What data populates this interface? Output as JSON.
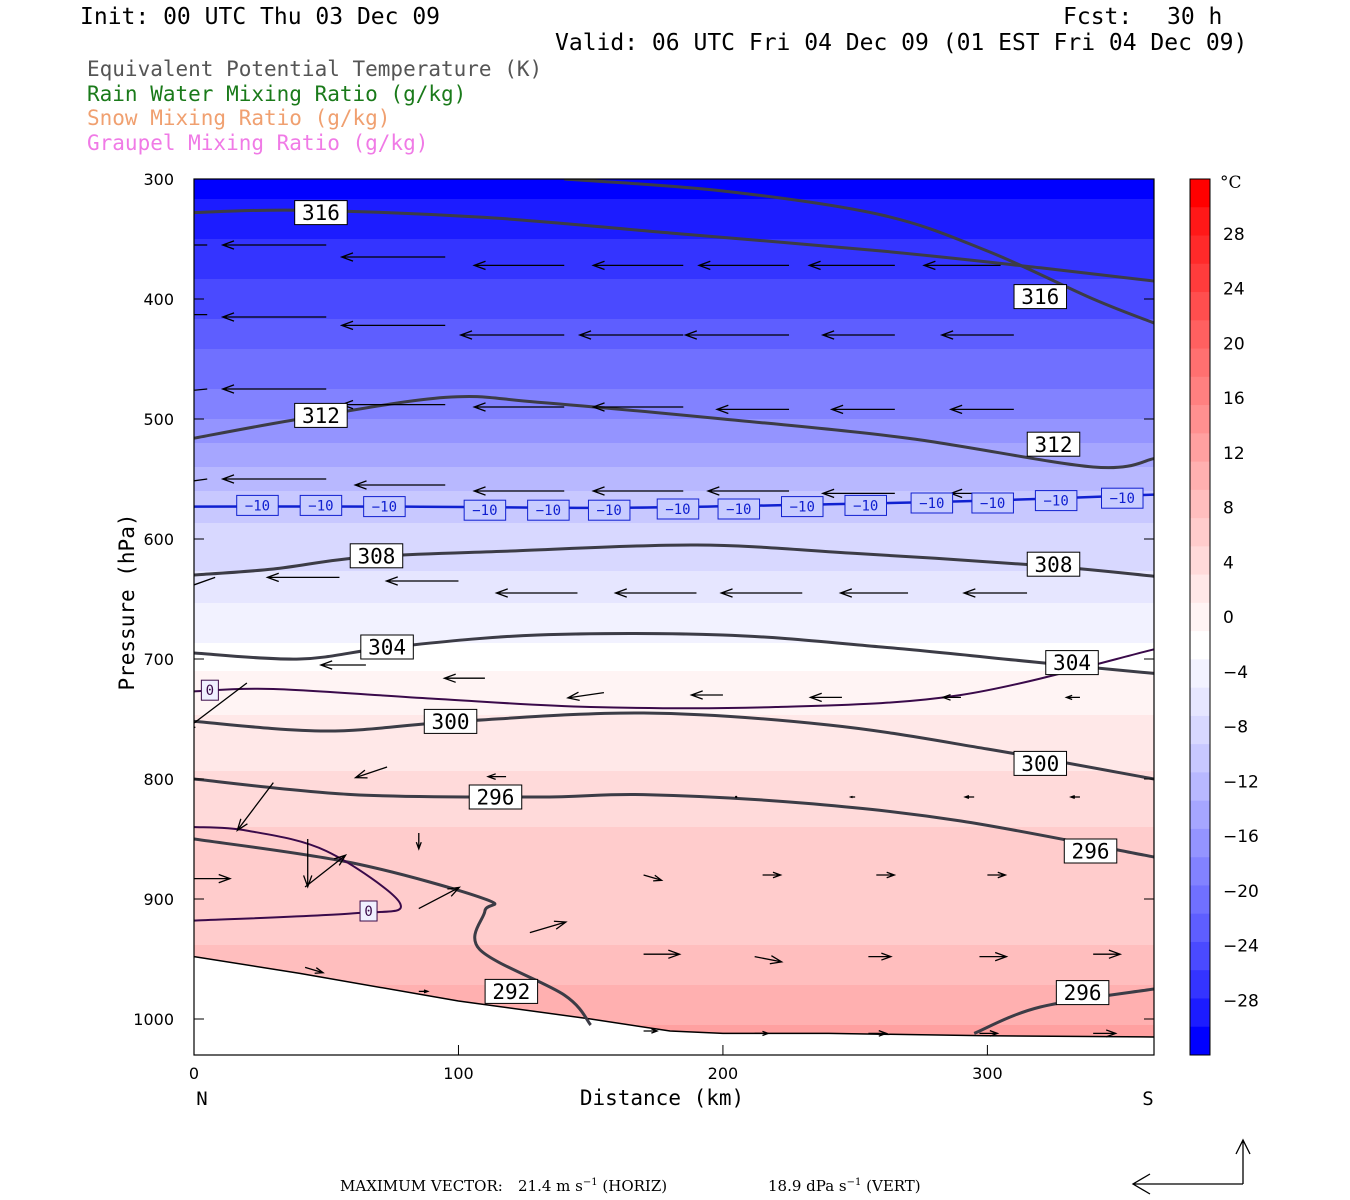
{
  "header": {
    "init": "Init: 00 UTC Thu 03 Dec 09",
    "fcst_label": "Fcst:",
    "fcst_value": "30 h",
    "valid": "Valid: 06 UTC Fri 04 Dec 09 (01 EST Fri 04 Dec 09)"
  },
  "fields": [
    {
      "label": "Equivalent Potential Temperature (K)",
      "color": "#555555"
    },
    {
      "label": "Rain Water Mixing Ratio (g/kg)",
      "color": "#1a7a1a"
    },
    {
      "label": "Snow Mixing Ratio (g/kg)",
      "color": "#f0a070"
    },
    {
      "label": "Graupel Mixing Ratio (g/kg)",
      "color": "#f07ae6"
    }
  ],
  "chart_data": {
    "type": "cross-section",
    "xlabel": "Distance (km)",
    "ylabel": "Pressure (hPa)",
    "xlim": [
      0,
      363
    ],
    "ylim": [
      1030,
      300
    ],
    "x_ticks": [
      "0",
      "100",
      "200",
      "300"
    ],
    "x_tick_values": [
      0,
      100,
      200,
      300
    ],
    "y_ticks": [
      "300",
      "400",
      "500",
      "600",
      "700",
      "800",
      "900",
      "1000"
    ],
    "y_tick_values": [
      300,
      400,
      500,
      600,
      700,
      800,
      900,
      1000
    ],
    "x_end_labels": {
      "left": "N",
      "right": "S"
    },
    "colorbar": {
      "unit": "°C",
      "ticks": [
        "28",
        "24",
        "20",
        "16",
        "12",
        "8",
        "4",
        "0",
        "−4",
        "−8",
        "−12",
        "−16",
        "−20",
        "−24",
        "−28"
      ],
      "tick_values": [
        28,
        24,
        20,
        16,
        12,
        8,
        4,
        0,
        -4,
        -8,
        -12,
        -16,
        -20,
        -24,
        -28
      ],
      "range": [
        -32,
        32
      ],
      "colors": [
        "#0000ff",
        "#1c1cff",
        "#3434ff",
        "#4a4aff",
        "#5e5eff",
        "#7070ff",
        "#8282ff",
        "#9494ff",
        "#a6a6ff",
        "#b8b8ff",
        "#c8c8ff",
        "#d8d8ff",
        "#e6e6ff",
        "#f2f2ff",
        "#ffffff",
        "#fff4f4",
        "#ffe8e8",
        "#ffdada",
        "#ffcccc",
        "#ffbebe",
        "#ffb0b0",
        "#ffa0a0",
        "#ff9090",
        "#ff8080",
        "#ff7070",
        "#ff6060",
        "#ff4e4e",
        "#ff3c3c",
        "#ff2a2a",
        "#ff1818",
        "#ff0000"
      ]
    },
    "temperature_bands": [
      {
        "p": 300,
        "t": -32
      },
      {
        "p": 400,
        "t": -26
      },
      {
        "p": 450,
        "t": -22
      },
      {
        "p": 500,
        "t": -18
      },
      {
        "p": 540,
        "t": -14
      },
      {
        "p": 580,
        "t": -10
      },
      {
        "p": 620,
        "t": -8
      },
      {
        "p": 660,
        "t": -5
      },
      {
        "p": 700,
        "t": -2
      },
      {
        "p": 730,
        "t": 0.5
      },
      {
        "p": 780,
        "t": 2
      },
      {
        "p": 820,
        "t": 5
      },
      {
        "p": 880,
        "t": 6
      },
      {
        "p": 930,
        "t": 7
      },
      {
        "p": 980,
        "t": 10
      },
      {
        "p": 1030,
        "t": 13
      }
    ],
    "theta_e_contours": [
      {
        "label": "316",
        "points": [
          [
            0,
            328
          ],
          [
            40,
            326
          ],
          [
            110,
            332
          ],
          [
            180,
            345
          ],
          [
            260,
            360
          ],
          [
            320,
            374
          ],
          [
            363,
            385
          ]
        ],
        "label_at": [
          48,
          328
        ]
      },
      {
        "label": "316",
        "points": [
          [
            140,
            300
          ],
          [
            200,
            310
          ],
          [
            260,
            330
          ],
          [
            300,
            360
          ],
          [
            340,
            400
          ],
          [
            363,
            420
          ]
        ],
        "label_at": [
          320,
          398
        ]
      },
      {
        "label": "312",
        "points": [
          [
            0,
            516
          ],
          [
            40,
            500
          ],
          [
            95,
            482
          ],
          [
            130,
            486
          ],
          [
            200,
            500
          ],
          [
            270,
            516
          ],
          [
            340,
            540
          ],
          [
            363,
            533
          ]
        ],
        "label_at": [
          48,
          497
        ]
      },
      {
        "label": "312",
        "points": [],
        "label_at": [
          325,
          521
        ]
      },
      {
        "label": "308",
        "points": [
          [
            0,
            630
          ],
          [
            30,
            625
          ],
          [
            65,
            615
          ],
          [
            120,
            610
          ],
          [
            190,
            605
          ],
          [
            250,
            612
          ],
          [
            320,
            622
          ],
          [
            363,
            631
          ]
        ],
        "label_at": [
          69,
          614
        ]
      },
      {
        "label": "308",
        "points": [],
        "label_at": [
          325,
          621
        ]
      },
      {
        "label": "304",
        "points": [
          [
            0,
            695
          ],
          [
            40,
            700
          ],
          [
            75,
            690
          ],
          [
            130,
            680
          ],
          [
            200,
            680
          ],
          [
            260,
            690
          ],
          [
            320,
            703
          ],
          [
            363,
            712
          ]
        ],
        "label_at": [
          73,
          690
        ]
      },
      {
        "label": "304",
        "points": [],
        "label_at": [
          332,
          703
        ]
      },
      {
        "label": "300",
        "points": [
          [
            0,
            752
          ],
          [
            50,
            760
          ],
          [
            100,
            752
          ],
          [
            170,
            745
          ],
          [
            240,
            755
          ],
          [
            300,
            775
          ],
          [
            363,
            800
          ]
        ],
        "label_at": [
          97,
          752
        ]
      },
      {
        "label": "300",
        "points": [],
        "label_at": [
          320,
          787
        ]
      },
      {
        "label": "296",
        "points": [
          [
            0,
            800
          ],
          [
            60,
            813
          ],
          [
            130,
            815
          ],
          [
            170,
            813
          ],
          [
            230,
            820
          ],
          [
            290,
            835
          ],
          [
            363,
            865
          ]
        ],
        "label_at": [
          114,
          815
        ]
      },
      {
        "label": "296",
        "points": [],
        "label_at": [
          339,
          860
        ]
      },
      {
        "label": "296",
        "points": [
          [
            295,
            1012
          ],
          [
            320,
            990
          ],
          [
            363,
            975
          ]
        ],
        "label_at": [
          336,
          978
        ]
      },
      {
        "label": "292",
        "points": [
          [
            0,
            850
          ],
          [
            60,
            870
          ],
          [
            110,
            900
          ],
          [
            110,
            910
          ],
          [
            108,
            942
          ],
          [
            140,
            980
          ],
          [
            150,
            1005
          ]
        ],
        "label_at": [
          120,
          977
        ]
      }
    ],
    "freezing_contours": [
      {
        "label": "0",
        "points": [
          [
            0,
            727
          ],
          [
            30,
            725
          ],
          [
            90,
            733
          ],
          [
            150,
            740
          ],
          [
            220,
            740
          ],
          [
            290,
            730
          ],
          [
            363,
            692
          ]
        ],
        "label_at": [
          6,
          726
        ]
      },
      {
        "label": "0",
        "points": [
          [
            0,
            840
          ],
          [
            20,
            843
          ],
          [
            50,
            860
          ],
          [
            78,
            904
          ],
          [
            60,
            912
          ],
          [
            0,
            918
          ]
        ],
        "label_at": [
          66,
          910
        ]
      }
    ],
    "minus10_contour": {
      "label": "−10",
      "points": [
        [
          0,
          573
        ],
        [
          80,
          573
        ],
        [
          160,
          574
        ],
        [
          240,
          571
        ],
        [
          300,
          568
        ],
        [
          363,
          563
        ]
      ],
      "label_at": [
        [
          24,
          572
        ],
        [
          48,
          572
        ],
        [
          72,
          573
        ],
        [
          110,
          576
        ],
        [
          134,
          576
        ],
        [
          157,
          576
        ],
        [
          183,
          575
        ],
        [
          206,
          575
        ],
        [
          230,
          573
        ],
        [
          254,
          572
        ],
        [
          279,
          570
        ],
        [
          302,
          570
        ],
        [
          326,
          568
        ],
        [
          351,
          566
        ]
      ]
    },
    "vectors": [
      {
        "x": 5,
        "p": 355,
        "u": -23,
        "w": 0
      },
      {
        "x": 50,
        "p": 355,
        "u": -23,
        "w": 0
      },
      {
        "x": 95,
        "p": 365,
        "u": -23,
        "w": 0
      },
      {
        "x": 140,
        "p": 372,
        "u": -20,
        "w": 0
      },
      {
        "x": 185,
        "p": 372,
        "u": -20,
        "w": 0
      },
      {
        "x": 225,
        "p": 372,
        "u": -20,
        "w": 0
      },
      {
        "x": 265,
        "p": 372,
        "u": -19,
        "w": 0
      },
      {
        "x": 305,
        "p": 372,
        "u": -17,
        "w": 0
      },
      {
        "x": 5,
        "p": 413,
        "u": -27,
        "w": 0
      },
      {
        "x": 50,
        "p": 415,
        "u": -23,
        "w": 0
      },
      {
        "x": 95,
        "p": 422,
        "u": -23,
        "w": 0
      },
      {
        "x": 140,
        "p": 430,
        "u": -23,
        "w": 0
      },
      {
        "x": 185,
        "p": 430,
        "u": -23,
        "w": 0
      },
      {
        "x": 225,
        "p": 430,
        "u": -23,
        "w": 0
      },
      {
        "x": 265,
        "p": 430,
        "u": -16,
        "w": 0
      },
      {
        "x": 310,
        "p": 430,
        "u": -16,
        "w": 0
      },
      {
        "x": 5,
        "p": 475,
        "u": -25,
        "w": 2
      },
      {
        "x": 50,
        "p": 475,
        "u": -23,
        "w": 0
      },
      {
        "x": 95,
        "p": 488,
        "u": -23,
        "w": 0
      },
      {
        "x": 140,
        "p": 490,
        "u": -20,
        "w": 0
      },
      {
        "x": 185,
        "p": 490,
        "u": -20,
        "w": 0
      },
      {
        "x": 225,
        "p": 492,
        "u": -16,
        "w": 0
      },
      {
        "x": 265,
        "p": 492,
        "u": -14,
        "w": 0
      },
      {
        "x": 310,
        "p": 492,
        "u": -14,
        "w": 0
      },
      {
        "x": 5,
        "p": 550,
        "u": -26,
        "w": 3
      },
      {
        "x": 50,
        "p": 550,
        "u": -23,
        "w": 0
      },
      {
        "x": 95,
        "p": 555,
        "u": -20,
        "w": 0
      },
      {
        "x": 140,
        "p": 560,
        "u": -20,
        "w": 0
      },
      {
        "x": 185,
        "p": 560,
        "u": -20,
        "w": 0
      },
      {
        "x": 225,
        "p": 560,
        "u": -18,
        "w": 0
      },
      {
        "x": 265,
        "p": 562,
        "u": -16,
        "w": 0
      },
      {
        "x": 310,
        "p": 562,
        "u": -14,
        "w": 0
      },
      {
        "x": 8,
        "p": 632,
        "u": -20,
        "w": 6
      },
      {
        "x": 55,
        "p": 632,
        "u": -16,
        "w": 0
      },
      {
        "x": 100,
        "p": 635,
        "u": -16,
        "w": 0
      },
      {
        "x": 145,
        "p": 645,
        "u": -18,
        "w": 0
      },
      {
        "x": 190,
        "p": 645,
        "u": -18,
        "w": 0
      },
      {
        "x": 230,
        "p": 645,
        "u": -18,
        "w": 0
      },
      {
        "x": 270,
        "p": 645,
        "u": -15,
        "w": 0
      },
      {
        "x": 315,
        "p": 645,
        "u": -14,
        "w": 0
      },
      {
        "x": 20,
        "p": 720,
        "u": -14,
        "w": 9
      },
      {
        "x": 65,
        "p": 705,
        "u": -10,
        "w": 0
      },
      {
        "x": 110,
        "p": 716,
        "u": -9,
        "w": 0
      },
      {
        "x": 155,
        "p": 728,
        "u": -8,
        "w": 1
      },
      {
        "x": 200,
        "p": 730,
        "u": -7,
        "w": 0
      },
      {
        "x": 245,
        "p": 732,
        "u": -7,
        "w": 0
      },
      {
        "x": 290,
        "p": 732,
        "u": -4,
        "w": 0
      },
      {
        "x": 335,
        "p": 732,
        "u": -3,
        "w": 0
      },
      {
        "x": 30,
        "p": 803,
        "u": -8,
        "w": 9
      },
      {
        "x": 73,
        "p": 790,
        "u": -7,
        "w": 2
      },
      {
        "x": 118,
        "p": 798,
        "u": -4,
        "w": 0
      },
      {
        "x": 205,
        "p": 815,
        "u": 0,
        "w": 0
      },
      {
        "x": 250,
        "p": 815,
        "u": -1,
        "w": 0
      },
      {
        "x": 295,
        "p": 815,
        "u": -2,
        "w": 0
      },
      {
        "x": 335,
        "p": 815,
        "u": -2,
        "w": 0
      },
      {
        "x": 43,
        "p": 850,
        "u": 0,
        "w": 9
      },
      {
        "x": 85,
        "p": 845,
        "u": 0,
        "w": 3
      },
      {
        "x": 170,
        "p": 880,
        "u": 4,
        "w": 1
      },
      {
        "x": 215,
        "p": 880,
        "u": 4,
        "w": 0
      },
      {
        "x": 258,
        "p": 880,
        "u": 4,
        "w": 0
      },
      {
        "x": 300,
        "p": 880,
        "u": 4,
        "w": 0
      },
      {
        "x": 0,
        "p": 883,
        "u": 8,
        "w": 0
      },
      {
        "x": 42,
        "p": 890,
        "u": 9,
        "w": -6
      },
      {
        "x": 85,
        "p": 908,
        "u": 9,
        "w": -4
      },
      {
        "x": 127,
        "p": 928,
        "u": 8,
        "w": -2
      },
      {
        "x": 170,
        "p": 946,
        "u": 8,
        "w": 0
      },
      {
        "x": 212,
        "p": 948,
        "u": 6,
        "w": 1
      },
      {
        "x": 255,
        "p": 948,
        "u": 5,
        "w": 0
      },
      {
        "x": 297,
        "p": 948,
        "u": 6,
        "w": 0
      },
      {
        "x": 340,
        "p": 946,
        "u": 6,
        "w": 0
      },
      {
        "x": 42,
        "p": 957,
        "u": 4,
        "w": 1
      },
      {
        "x": 85,
        "p": 977,
        "u": 2,
        "w": 0
      },
      {
        "x": 170,
        "p": 1010,
        "u": 3,
        "w": 0
      },
      {
        "x": 212,
        "p": 1012,
        "u": 3,
        "w": 0
      },
      {
        "x": 255,
        "p": 1012,
        "u": 4,
        "w": 0
      },
      {
        "x": 297,
        "p": 1012,
        "u": 4,
        "w": 0
      },
      {
        "x": 340,
        "p": 1012,
        "u": 5,
        "w": 0
      }
    ],
    "terrain": [
      [
        0,
        948
      ],
      [
        40,
        962
      ],
      [
        100,
        985
      ],
      [
        150,
        1000
      ],
      [
        180,
        1010
      ],
      [
        200,
        1012
      ],
      [
        240,
        1012
      ],
      [
        300,
        1014
      ],
      [
        363,
        1015
      ]
    ]
  },
  "footer": {
    "max_vector_label": "MAXIMUM VECTOR:",
    "horiz_value": "21.4 m s",
    "horiz_exp": "−1",
    "horiz_tag": "(HORIZ)",
    "vert_value": "18.9 dPa s",
    "vert_exp": "−1",
    "vert_tag": "(VERT)"
  }
}
